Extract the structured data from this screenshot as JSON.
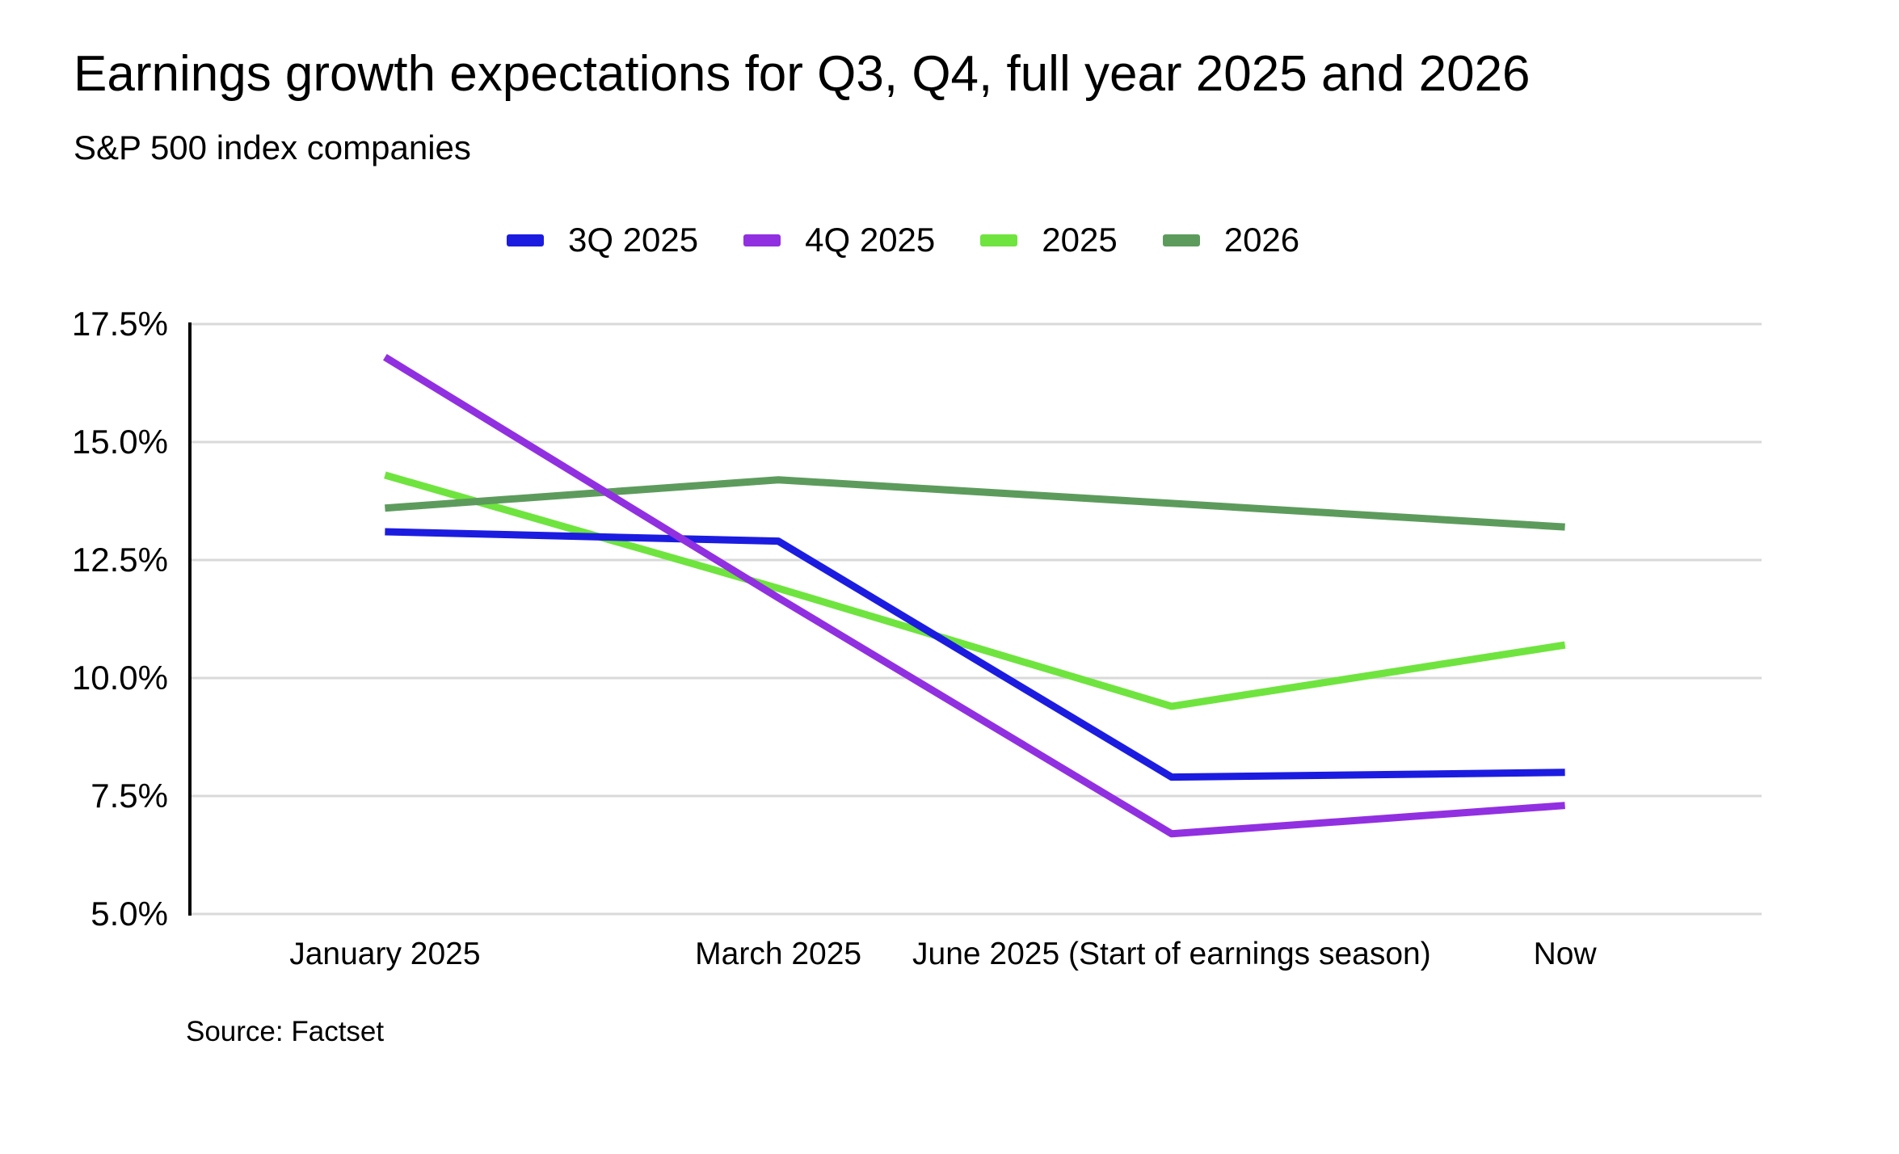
{
  "page": {
    "title": "Earnings growth expectations for Q3, Q4, full year 2025 and 2026",
    "subtitle": "S&P 500 index companies",
    "source": "Source: Factset"
  },
  "chart_data": {
    "type": "line",
    "title": "Earnings growth expectations for Q3, Q4, full year 2025 and 2026",
    "subtitle": "S&P 500 index companies",
    "source": "Source: Factset",
    "categories": [
      "January 2025",
      "March 2025",
      "June 2025 (Start of earnings season)",
      "Now"
    ],
    "series": [
      {
        "name": "3Q 2025",
        "color": "#1c1ce0",
        "values": [
          13.1,
          12.9,
          7.9,
          8.0
        ]
      },
      {
        "name": "4Q 2025",
        "color": "#9130e0",
        "values": [
          16.8,
          11.7,
          6.7,
          7.3
        ]
      },
      {
        "name": "2025",
        "color": "#6fe43f",
        "values": [
          14.3,
          11.9,
          9.4,
          10.7
        ]
      },
      {
        "name": "2026",
        "color": "#5d9b5d",
        "values": [
          13.6,
          14.2,
          13.7,
          13.2
        ]
      }
    ],
    "unit": "%",
    "ylim": [
      5.0,
      17.5
    ],
    "y_tick_labels": [
      "17.5%",
      "15.0%",
      "12.5%",
      "10.0%",
      "7.5%",
      "5.0%"
    ],
    "y_tick_values": [
      17.5,
      15.0,
      12.5,
      10.0,
      7.5,
      5.0
    ],
    "grid": "horizontal",
    "gridline_color": "#d9d9d9",
    "axis_color": "#000000",
    "legend_position": "top-center"
  }
}
